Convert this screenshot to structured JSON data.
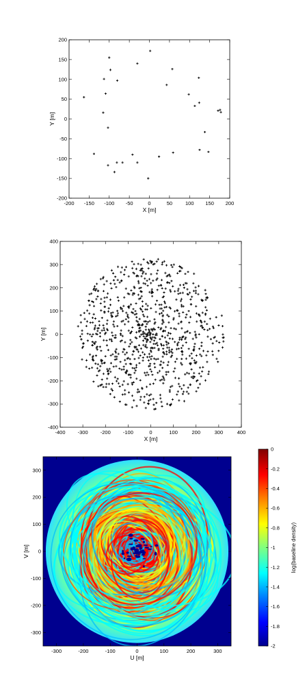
{
  "chart_data": [
    {
      "type": "scatter",
      "xlabel": "X [m]",
      "ylabel": "Y [m]",
      "xlim": [
        -200,
        200
      ],
      "ylim": [
        -200,
        200
      ],
      "xticks": [
        -200,
        -150,
        -100,
        -50,
        0,
        50,
        100,
        150,
        200
      ],
      "yticks": [
        -200,
        -150,
        -100,
        -50,
        0,
        50,
        100,
        150,
        200
      ],
      "marker_color": "#000000",
      "points": [
        [
          2,
          172
        ],
        [
          -100,
          155
        ],
        [
          -97,
          124
        ],
        [
          -80,
          97
        ],
        [
          -113,
          101
        ],
        [
          -30,
          140
        ],
        [
          57,
          126
        ],
        [
          43,
          86
        ],
        [
          -109,
          64
        ],
        [
          -163,
          55
        ],
        [
          -115,
          16
        ],
        [
          -103,
          -22
        ],
        [
          98,
          62
        ],
        [
          113,
          33
        ],
        [
          123,
          104
        ],
        [
          124,
          41
        ],
        [
          171,
          21
        ],
        [
          176,
          23
        ],
        [
          178,
          17
        ],
        [
          138,
          -33
        ],
        [
          147,
          -83
        ],
        [
          59,
          -85
        ],
        [
          125,
          -78
        ],
        [
          -138,
          -88
        ],
        [
          -103,
          -117
        ],
        [
          -81,
          -110
        ],
        [
          -67,
          -110
        ],
        [
          -42,
          -90
        ],
        [
          -30,
          -110
        ],
        [
          -87,
          -134
        ],
        [
          24,
          -95
        ],
        [
          -3,
          -150
        ]
      ]
    },
    {
      "type": "scatter",
      "xlabel": "X [m]",
      "ylabel": "Y [m]",
      "xlim": [
        -400,
        400
      ],
      "ylim": [
        -400,
        400
      ],
      "xticks": [
        -400,
        -300,
        -200,
        -100,
        0,
        100,
        200,
        300,
        400
      ],
      "yticks": [
        -400,
        -300,
        -200,
        -100,
        0,
        100,
        200,
        300,
        400
      ],
      "marker_color": "#000000",
      "distribution": "dense cluster of roughly 900 stations filling a disc of radius about 320 m centred on the origin, densest near the centre"
    },
    {
      "type": "heatmap",
      "xlabel": "U [m]",
      "ylabel": "V [m]",
      "xlim": [
        -350,
        350
      ],
      "ylim": [
        -350,
        350
      ],
      "xticks": [
        -300,
        -200,
        -100,
        0,
        100,
        200,
        300
      ],
      "yticks": [
        -300,
        -200,
        -100,
        0,
        100,
        200,
        300
      ],
      "background_color": "#00008f",
      "colorbar": {
        "label": "log(baseline density)",
        "range": [
          -2,
          0
        ],
        "ticks": [
          0,
          -0.2,
          -0.4,
          -0.6,
          -0.8,
          -1,
          -1.2,
          -1.4,
          -1.6,
          -1.8,
          -2
        ],
        "colors": [
          "#00008f",
          "#0000ff",
          "#0080ff",
          "#00ffff",
          "#80ff80",
          "#ffff00",
          "#ff8000",
          "#ff0000",
          "#800000"
        ]
      },
      "distribution": "uv-coverage made of many overlapping elliptical tracks filling a disc of radius about 340 m; density highest (red) near the centre, decreasing to cyan at the rim"
    }
  ]
}
